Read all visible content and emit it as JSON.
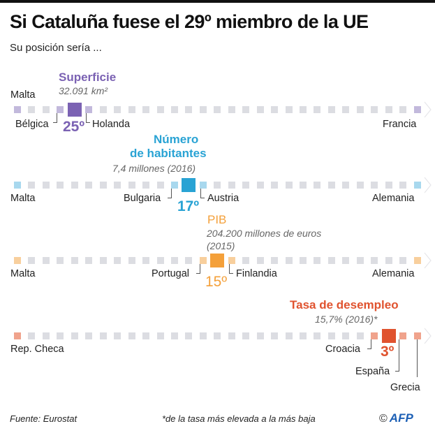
{
  "title": "Si Cataluña fuese el 29º miembro de la UE",
  "subtitle": "Su posición sería ...",
  "total_positions": 29,
  "rows": [
    {
      "key": "superficie",
      "title_lines": [
        "Superficie"
      ],
      "value": "32.091 km²",
      "rank_label": "25º",
      "rank": 25,
      "color": "#7b62b3",
      "neighbor_color": "#c2b9dc",
      "left_end": "Malta",
      "right_end": "Francia",
      "neighbor_left": "Bélgica",
      "neighbor_right": "Holanda"
    },
    {
      "key": "habitantes",
      "title_lines": [
        "Número",
        "de habitantes"
      ],
      "value": "7,4 millones (2016)",
      "rank_label": "17º",
      "rank": 17,
      "color": "#29a3d4",
      "neighbor_color": "#a8d8ee",
      "left_end": "Malta",
      "right_end": "Alemania",
      "neighbor_left": "Bulgaria",
      "neighbor_right": "Austria"
    },
    {
      "key": "pib",
      "title_lines": [
        "PIB"
      ],
      "value_lines": [
        "204.200 millones de euros",
        "(2015)"
      ],
      "rank_label": "15º",
      "rank": 15,
      "color": "#f4a03a",
      "neighbor_color": "#f8cf9d",
      "left_end": "Malta",
      "right_end": "Alemania",
      "neighbor_left": "Portugal",
      "neighbor_right": "Finlandia"
    },
    {
      "key": "desempleo",
      "title_lines": [
        "Tasa de desempleo"
      ],
      "value": "15,7% (2016)*",
      "rank_label": "3º",
      "rank": 3,
      "color": "#e0532f",
      "neighbor_color": "#f0a38c",
      "left_end": "Rep. Checa",
      "neighbor_left": "Croacia",
      "below_1": "España",
      "below_2": "Grecia"
    }
  ],
  "footer": {
    "source": "Fuente: Eurostat",
    "note": "*de la tasa más elevada a la más baja",
    "copyright": "©",
    "agency": "AFP"
  }
}
